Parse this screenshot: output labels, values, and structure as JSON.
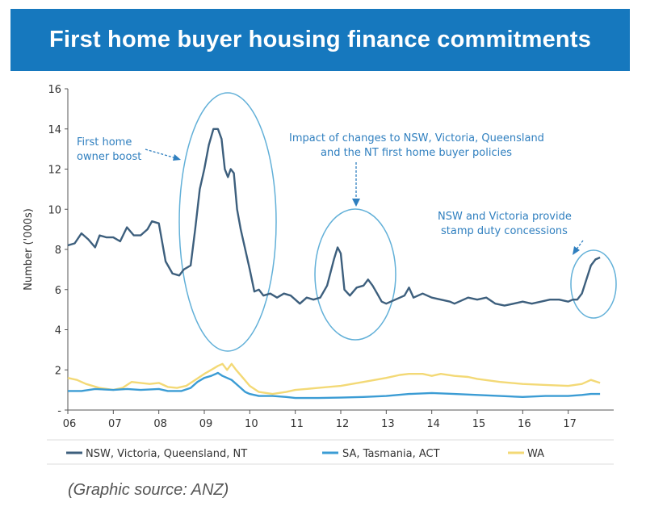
{
  "header": {
    "title": "First home buyer housing finance commitments"
  },
  "source": "(Graphic source: ANZ)",
  "chart_data": {
    "type": "line",
    "ylabel": "Number ('000s)",
    "xlim": [
      2006,
      2018
    ],
    "ylim": [
      0,
      16
    ],
    "x_ticks": [
      {
        "value": 2006,
        "label": "06"
      },
      {
        "value": 2007,
        "label": "07"
      },
      {
        "value": 2008,
        "label": "08"
      },
      {
        "value": 2009,
        "label": "09"
      },
      {
        "value": 2010,
        "label": "10"
      },
      {
        "value": 2011,
        "label": "11"
      },
      {
        "value": 2012,
        "label": "12"
      },
      {
        "value": 2013,
        "label": "13"
      },
      {
        "value": 2014,
        "label": "14"
      },
      {
        "value": 2015,
        "label": "15"
      },
      {
        "value": 2016,
        "label": "16"
      },
      {
        "value": 2017,
        "label": "17"
      }
    ],
    "y_ticks": [
      {
        "value": 0,
        "label": "-"
      },
      {
        "value": 2,
        "label": "2"
      },
      {
        "value": 4,
        "label": "4"
      },
      {
        "value": 6,
        "label": "6"
      },
      {
        "value": 8,
        "label": "8"
      },
      {
        "value": 10,
        "label": "10"
      },
      {
        "value": 12,
        "label": "12"
      },
      {
        "value": 14,
        "label": "14"
      },
      {
        "value": 16,
        "label": "16"
      }
    ],
    "grid": false,
    "legend": "bottom",
    "series": [
      {
        "name": "NSW, Victoria, Queensland, NT",
        "color": "#3d5f7d",
        "points": [
          [
            2006.0,
            8.2
          ],
          [
            2006.15,
            8.3
          ],
          [
            2006.3,
            8.8
          ],
          [
            2006.45,
            8.5
          ],
          [
            2006.6,
            8.1
          ],
          [
            2006.7,
            8.7
          ],
          [
            2006.85,
            8.6
          ],
          [
            2007.0,
            8.6
          ],
          [
            2007.15,
            8.4
          ],
          [
            2007.3,
            9.1
          ],
          [
            2007.45,
            8.7
          ],
          [
            2007.6,
            8.7
          ],
          [
            2007.75,
            9.0
          ],
          [
            2007.85,
            9.4
          ],
          [
            2008.0,
            9.3
          ],
          [
            2008.15,
            7.4
          ],
          [
            2008.3,
            6.8
          ],
          [
            2008.45,
            6.7
          ],
          [
            2008.55,
            7.0
          ],
          [
            2008.7,
            7.2
          ],
          [
            2008.8,
            9.0
          ],
          [
            2008.9,
            11.0
          ],
          [
            2009.0,
            12.0
          ],
          [
            2009.1,
            13.2
          ],
          [
            2009.2,
            14.0
          ],
          [
            2009.3,
            14.0
          ],
          [
            2009.38,
            13.5
          ],
          [
            2009.45,
            12.0
          ],
          [
            2009.52,
            11.6
          ],
          [
            2009.58,
            12.0
          ],
          [
            2009.65,
            11.8
          ],
          [
            2009.72,
            10.0
          ],
          [
            2009.8,
            9.0
          ],
          [
            2009.9,
            8.0
          ],
          [
            2010.0,
            7.0
          ],
          [
            2010.1,
            5.9
          ],
          [
            2010.2,
            6.0
          ],
          [
            2010.3,
            5.7
          ],
          [
            2010.45,
            5.8
          ],
          [
            2010.6,
            5.6
          ],
          [
            2010.75,
            5.8
          ],
          [
            2010.9,
            5.7
          ],
          [
            2011.0,
            5.5
          ],
          [
            2011.1,
            5.3
          ],
          [
            2011.25,
            5.6
          ],
          [
            2011.4,
            5.5
          ],
          [
            2011.55,
            5.6
          ],
          [
            2011.7,
            6.2
          ],
          [
            2011.85,
            7.5
          ],
          [
            2011.93,
            8.1
          ],
          [
            2012.0,
            7.8
          ],
          [
            2012.08,
            6.0
          ],
          [
            2012.2,
            5.7
          ],
          [
            2012.35,
            6.1
          ],
          [
            2012.5,
            6.2
          ],
          [
            2012.6,
            6.5
          ],
          [
            2012.7,
            6.2
          ],
          [
            2012.8,
            5.8
          ],
          [
            2012.9,
            5.4
          ],
          [
            2013.0,
            5.3
          ],
          [
            2013.2,
            5.5
          ],
          [
            2013.4,
            5.7
          ],
          [
            2013.5,
            6.1
          ],
          [
            2013.6,
            5.6
          ],
          [
            2013.8,
            5.8
          ],
          [
            2014.0,
            5.6
          ],
          [
            2014.2,
            5.5
          ],
          [
            2014.4,
            5.4
          ],
          [
            2014.5,
            5.3
          ],
          [
            2014.6,
            5.4
          ],
          [
            2014.8,
            5.6
          ],
          [
            2015.0,
            5.5
          ],
          [
            2015.2,
            5.6
          ],
          [
            2015.4,
            5.3
          ],
          [
            2015.6,
            5.2
          ],
          [
            2015.8,
            5.3
          ],
          [
            2016.0,
            5.4
          ],
          [
            2016.2,
            5.3
          ],
          [
            2016.4,
            5.4
          ],
          [
            2016.6,
            5.5
          ],
          [
            2016.8,
            5.5
          ],
          [
            2017.0,
            5.4
          ],
          [
            2017.1,
            5.5
          ],
          [
            2017.2,
            5.5
          ],
          [
            2017.3,
            5.8
          ],
          [
            2017.4,
            6.5
          ],
          [
            2017.5,
            7.2
          ],
          [
            2017.6,
            7.5
          ],
          [
            2017.7,
            7.6
          ]
        ]
      },
      {
        "name": "SA, Tasmania, ACT",
        "color": "#3b9cd4",
        "points": [
          [
            2006.0,
            0.95
          ],
          [
            2006.3,
            0.95
          ],
          [
            2006.6,
            1.05
          ],
          [
            2007.0,
            1.0
          ],
          [
            2007.3,
            1.05
          ],
          [
            2007.6,
            1.0
          ],
          [
            2008.0,
            1.05
          ],
          [
            2008.2,
            0.95
          ],
          [
            2008.5,
            0.95
          ],
          [
            2008.7,
            1.1
          ],
          [
            2008.85,
            1.4
          ],
          [
            2009.0,
            1.6
          ],
          [
            2009.15,
            1.7
          ],
          [
            2009.3,
            1.85
          ],
          [
            2009.4,
            1.7
          ],
          [
            2009.5,
            1.6
          ],
          [
            2009.6,
            1.5
          ],
          [
            2009.75,
            1.2
          ],
          [
            2009.9,
            0.9
          ],
          [
            2010.0,
            0.8
          ],
          [
            2010.2,
            0.7
          ],
          [
            2010.5,
            0.7
          ],
          [
            2010.8,
            0.65
          ],
          [
            2011.0,
            0.6
          ],
          [
            2011.5,
            0.6
          ],
          [
            2012.0,
            0.62
          ],
          [
            2012.5,
            0.65
          ],
          [
            2013.0,
            0.7
          ],
          [
            2013.5,
            0.8
          ],
          [
            2014.0,
            0.85
          ],
          [
            2014.5,
            0.8
          ],
          [
            2015.0,
            0.75
          ],
          [
            2015.5,
            0.7
          ],
          [
            2016.0,
            0.65
          ],
          [
            2016.5,
            0.7
          ],
          [
            2017.0,
            0.7
          ],
          [
            2017.3,
            0.75
          ],
          [
            2017.5,
            0.8
          ],
          [
            2017.7,
            0.8
          ]
        ]
      },
      {
        "name": "WA",
        "color": "#f3d976",
        "points": [
          [
            2006.0,
            1.6
          ],
          [
            2006.2,
            1.5
          ],
          [
            2006.4,
            1.3
          ],
          [
            2006.7,
            1.1
          ],
          [
            2007.0,
            1.0
          ],
          [
            2007.2,
            1.1
          ],
          [
            2007.4,
            1.4
          ],
          [
            2007.6,
            1.35
          ],
          [
            2007.8,
            1.3
          ],
          [
            2008.0,
            1.35
          ],
          [
            2008.2,
            1.15
          ],
          [
            2008.4,
            1.1
          ],
          [
            2008.6,
            1.2
          ],
          [
            2008.8,
            1.5
          ],
          [
            2009.0,
            1.8
          ],
          [
            2009.15,
            2.0
          ],
          [
            2009.3,
            2.2
          ],
          [
            2009.4,
            2.3
          ],
          [
            2009.5,
            2.0
          ],
          [
            2009.6,
            2.3
          ],
          [
            2009.7,
            2.0
          ],
          [
            2009.85,
            1.6
          ],
          [
            2010.0,
            1.2
          ],
          [
            2010.2,
            0.9
          ],
          [
            2010.5,
            0.8
          ],
          [
            2010.8,
            0.9
          ],
          [
            2011.0,
            1.0
          ],
          [
            2011.5,
            1.1
          ],
          [
            2012.0,
            1.2
          ],
          [
            2012.5,
            1.4
          ],
          [
            2013.0,
            1.6
          ],
          [
            2013.3,
            1.75
          ],
          [
            2013.5,
            1.8
          ],
          [
            2013.8,
            1.8
          ],
          [
            2014.0,
            1.7
          ],
          [
            2014.2,
            1.8
          ],
          [
            2014.5,
            1.7
          ],
          [
            2014.8,
            1.65
          ],
          [
            2015.0,
            1.55
          ],
          [
            2015.5,
            1.4
          ],
          [
            2016.0,
            1.3
          ],
          [
            2016.5,
            1.25
          ],
          [
            2017.0,
            1.2
          ],
          [
            2017.3,
            1.3
          ],
          [
            2017.5,
            1.5
          ],
          [
            2017.7,
            1.35
          ]
        ]
      }
    ],
    "annotations": [
      {
        "id": "first-home-owner-boost",
        "lines": [
          "First home",
          "owner boost"
        ]
      },
      {
        "id": "policy-changes",
        "lines": [
          "Impact of changes to NSW, Victoria, Queensland",
          "and the NT first home buyer policies"
        ]
      },
      {
        "id": "stamp-duty",
        "lines": [
          "NSW and Victoria provide",
          "stamp duty concessions"
        ]
      }
    ]
  }
}
